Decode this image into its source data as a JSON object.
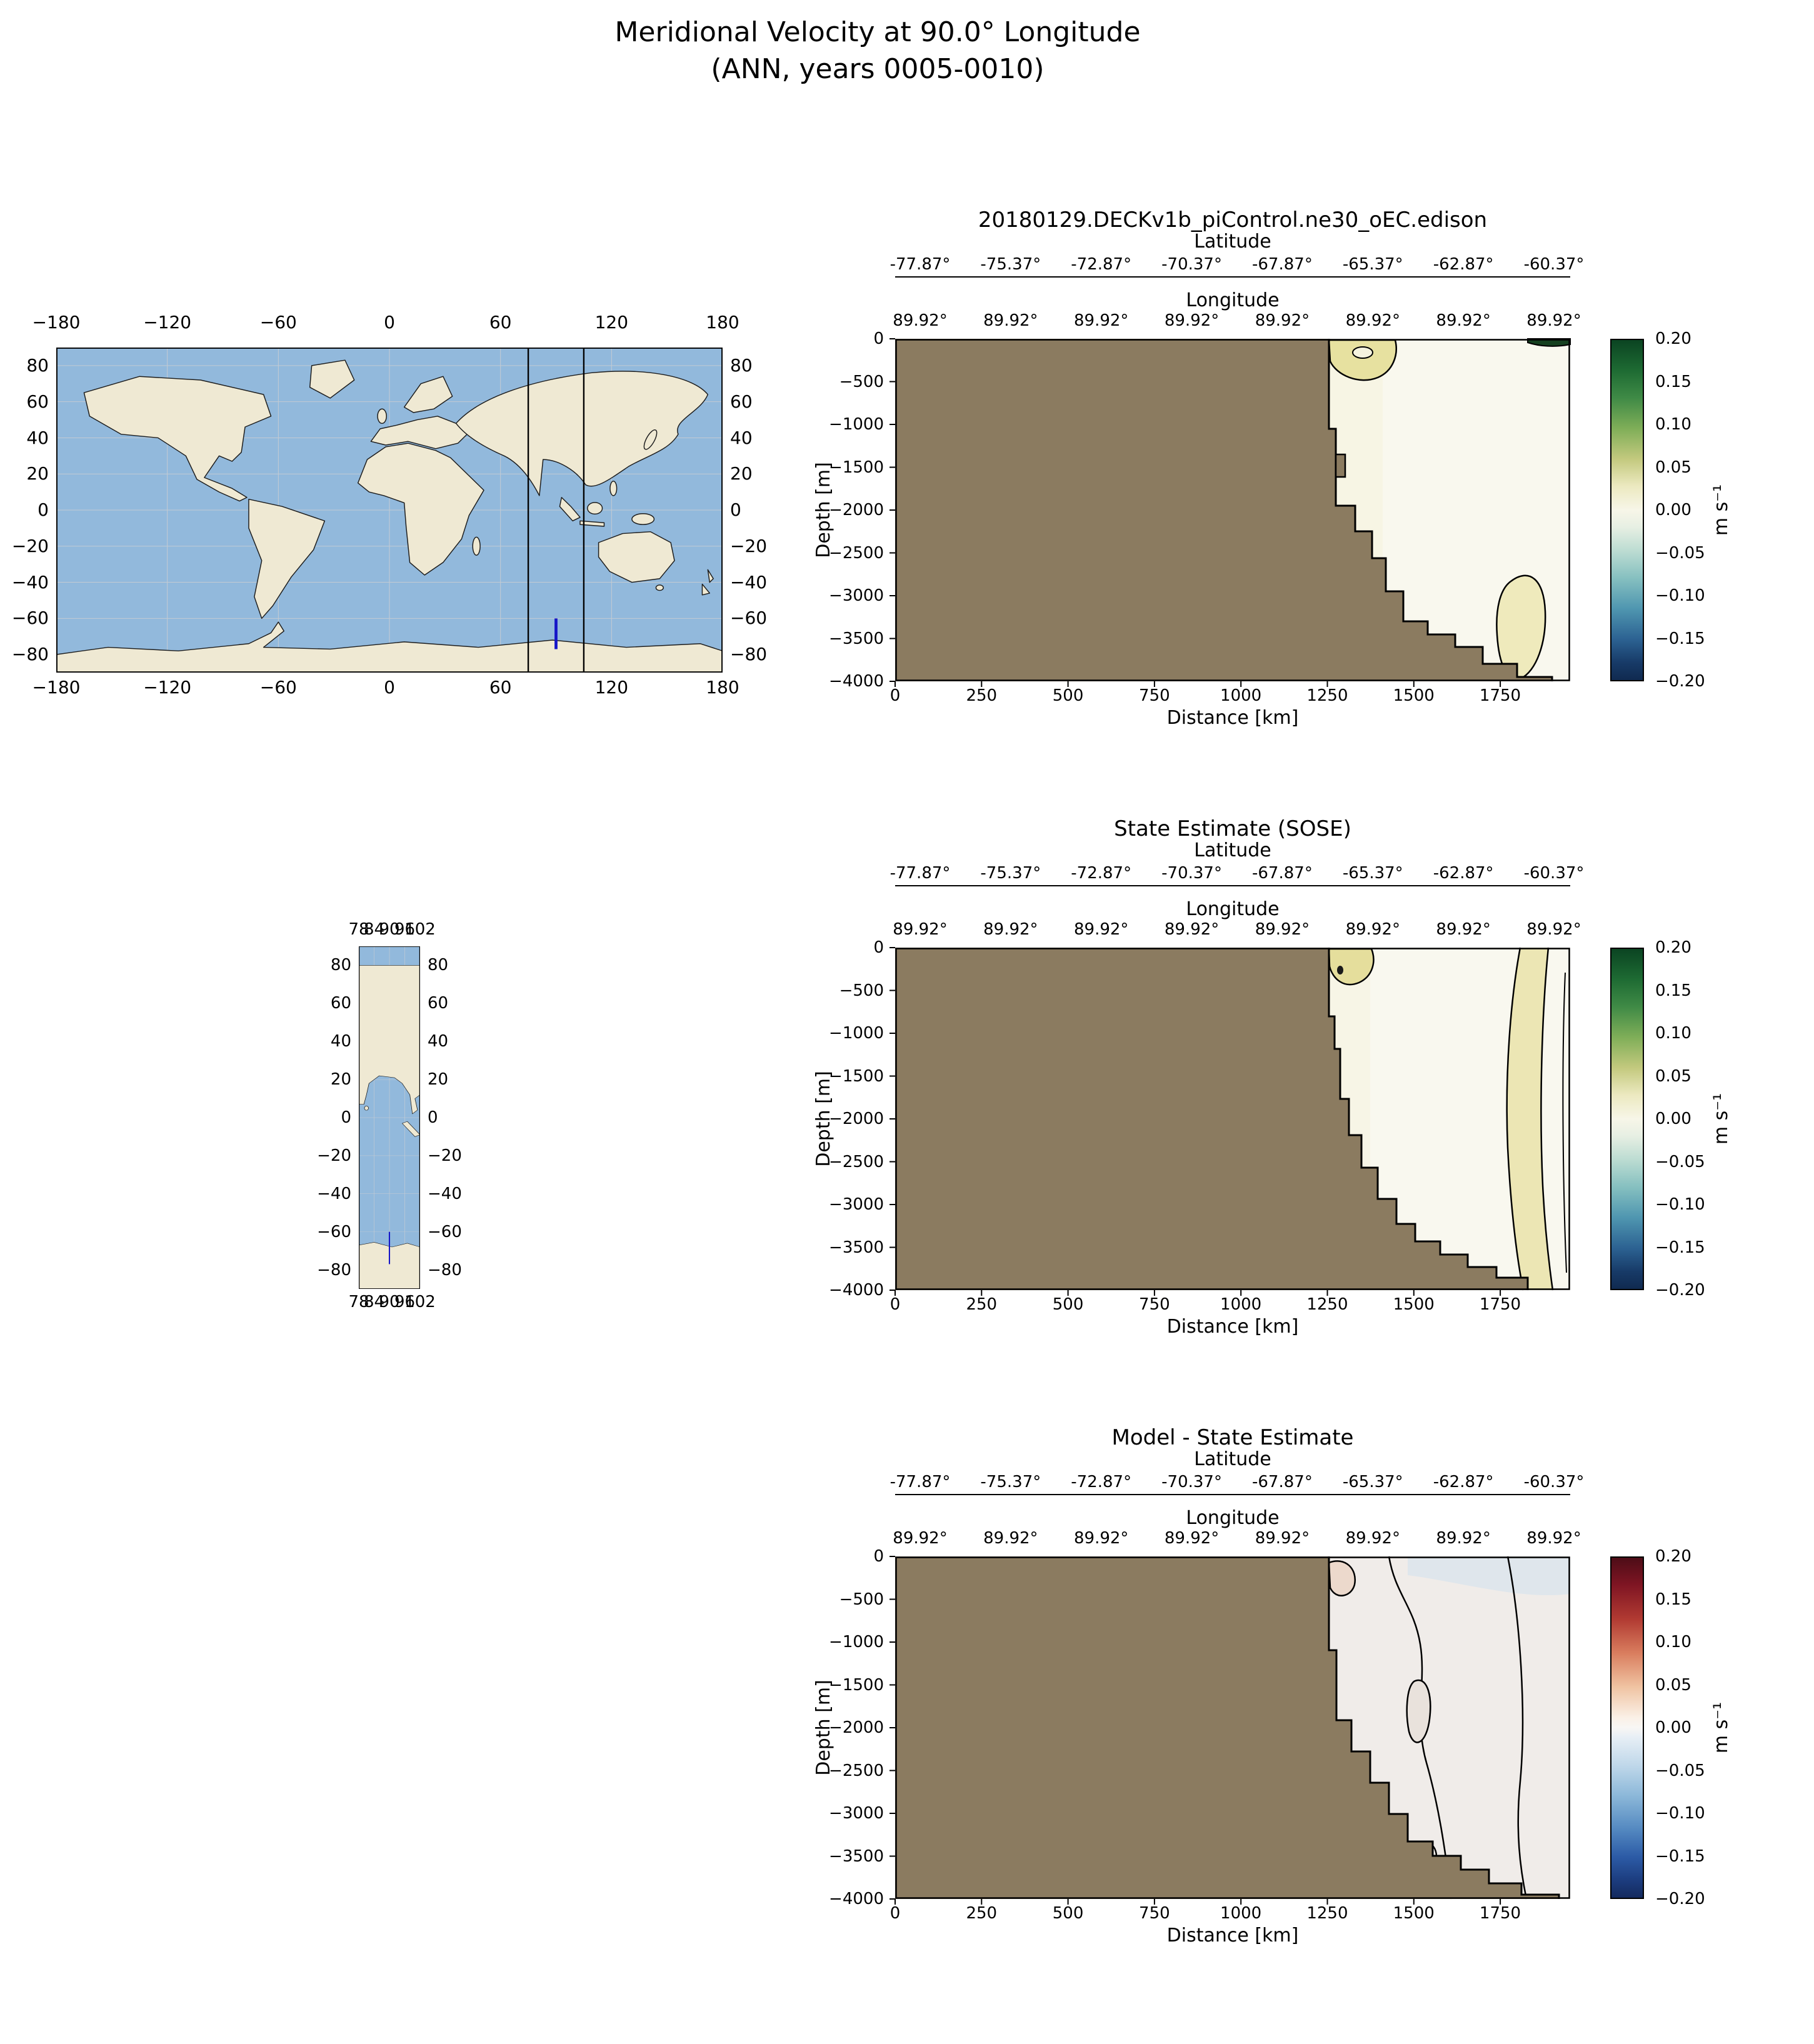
{
  "figure": {
    "title_line1": "Meridional Velocity at 90.0° Longitude",
    "title_line2": "(ANN, years 0005-0010)"
  },
  "world_map": {
    "lon_ticks": [
      "−180",
      "−120",
      "−60",
      "0",
      "60",
      "120",
      "180"
    ],
    "lat_ticks": [
      "80",
      "60",
      "40",
      "20",
      "0",
      "−20",
      "−40",
      "−60",
      "−80"
    ],
    "transect_longitude_deg": 90,
    "reference_lines_longitude_deg": [
      75,
      105
    ],
    "transect_latitude_range_deg": [
      -78,
      -60
    ],
    "colors": {
      "ocean": "#92b9dc",
      "land": "#efe9d3",
      "transect_line": "#1515c8",
      "reference_line": "#000000"
    }
  },
  "strip_map": {
    "lon_ticks": [
      "78",
      "84",
      "90",
      "96",
      "102"
    ],
    "lat_ticks": [
      "80",
      "60",
      "40",
      "20",
      "0",
      "−20",
      "−40",
      "−60",
      "−80"
    ]
  },
  "panels": [
    {
      "title": "20180129.DECKv1b_piControl.ne30_oEC.edison",
      "lat_label": "Latitude",
      "lat_ticks": [
        "-77.87°",
        "-75.37°",
        "-72.87°",
        "-70.37°",
        "-67.87°",
        "-65.37°",
        "-62.87°",
        "-60.37°"
      ],
      "lon_label": "Longitude",
      "lon_ticks": [
        "89.92°",
        "89.92°",
        "89.92°",
        "89.92°",
        "89.92°",
        "89.92°",
        "89.92°",
        "89.92°"
      ],
      "depth_label": "Depth [m]",
      "depth_ticks": [
        "0",
        "−500",
        "−1000",
        "−1500",
        "−2000",
        "−2500",
        "−3000",
        "−3500",
        "−4000"
      ],
      "dist_label": "Distance [km]",
      "dist_ticks": [
        "0",
        "250",
        "500",
        "750",
        "1000",
        "1250",
        "1500",
        "1750"
      ],
      "cb_ticks": [
        "0.20",
        "0.15",
        "0.10",
        "0.05",
        "0.00",
        "−0.05",
        "−0.10",
        "−0.15",
        "−0.20"
      ],
      "cb_label": "m s⁻¹"
    },
    {
      "title": "State Estimate (SOSE)",
      "lat_label": "Latitude",
      "lat_ticks": [
        "-77.87°",
        "-75.37°",
        "-72.87°",
        "-70.37°",
        "-67.87°",
        "-65.37°",
        "-62.87°",
        "-60.37°"
      ],
      "lon_label": "Longitude",
      "lon_ticks": [
        "89.92°",
        "89.92°",
        "89.92°",
        "89.92°",
        "89.92°",
        "89.92°",
        "89.92°",
        "89.92°"
      ],
      "depth_label": "Depth [m]",
      "depth_ticks": [
        "0",
        "−500",
        "−1000",
        "−1500",
        "−2000",
        "−2500",
        "−3000",
        "−3500",
        "−4000"
      ],
      "dist_label": "Distance [km]",
      "dist_ticks": [
        "0",
        "250",
        "500",
        "750",
        "1000",
        "1250",
        "1500",
        "1750"
      ],
      "cb_ticks": [
        "0.20",
        "0.15",
        "0.10",
        "0.05",
        "0.00",
        "−0.05",
        "−0.10",
        "−0.15",
        "−0.20"
      ],
      "cb_label": "m s⁻¹"
    },
    {
      "title": "Model - State Estimate",
      "lat_label": "Latitude",
      "lat_ticks": [
        "-77.87°",
        "-75.37°",
        "-72.87°",
        "-70.37°",
        "-67.87°",
        "-65.37°",
        "-62.87°",
        "-60.37°"
      ],
      "lon_label": "Longitude",
      "lon_ticks": [
        "89.92°",
        "89.92°",
        "89.92°",
        "89.92°",
        "89.92°",
        "89.92°",
        "89.92°",
        "89.92°"
      ],
      "depth_label": "Depth [m]",
      "depth_ticks": [
        "0",
        "−500",
        "−1000",
        "−1500",
        "−2000",
        "−2500",
        "−3000",
        "−3500",
        "−4000"
      ],
      "dist_label": "Distance [km]",
      "dist_ticks": [
        "0",
        "250",
        "500",
        "750",
        "1000",
        "1250",
        "1500",
        "1750"
      ],
      "cb_ticks": [
        "0.20",
        "0.15",
        "0.10",
        "0.05",
        "0.00",
        "−0.05",
        "−0.10",
        "−0.15",
        "−0.20"
      ],
      "cb_label": "m s⁻¹"
    }
  ],
  "chart_data": [
    {
      "type": "heatmap",
      "title": "20180129.DECKv1b_piControl.ne30_oEC.edison",
      "variable": "Meridional velocity section along 90.0°E",
      "units": "m s⁻¹",
      "xlabel": "Distance [km]",
      "ylabel": "Depth [m]",
      "xlim": [
        0,
        1950
      ],
      "ylim": [
        -4000,
        0
      ],
      "x_ticks": [
        0,
        250,
        500,
        750,
        1000,
        1250,
        1500,
        1750
      ],
      "y_ticks": [
        0,
        -500,
        -1000,
        -1500,
        -2000,
        -2500,
        -3000,
        -3500,
        -4000
      ],
      "top_axis_latitude_ticks_deg": [
        -77.87,
        -75.37,
        -72.87,
        -70.37,
        -67.87,
        -65.37,
        -62.87,
        -60.37
      ],
      "top_axis_longitude_ticks_deg": [
        89.92,
        89.92,
        89.92,
        89.92,
        89.92,
        89.92,
        89.92,
        89.92
      ],
      "colorbar": {
        "label": "m s⁻¹",
        "vmin": -0.2,
        "vmax": 0.2,
        "tick_step": 0.05,
        "palette": "dark green → yellow-green → white → light blue → dark navy"
      },
      "land_mask_color": "#8b7b60",
      "approx_seafloor_profile_km_depth_m": [
        [
          1255,
          0
        ],
        [
          1270,
          -1950
        ],
        [
          1330,
          -2250
        ],
        [
          1420,
          -2950
        ],
        [
          1540,
          -3450
        ],
        [
          1700,
          -3800
        ],
        [
          1900,
          -4000
        ]
      ],
      "visible_field_summary": "Ocean wedge right of ~1255 km; values mostly near 0 (pale); weak positive patch ~0.05 near surface at 1260-1450 km; weak positive blob near seafloor at 1750-1900 km; thin strong negative strip at surface near right edge"
    },
    {
      "type": "heatmap",
      "title": "State Estimate (SOSE)",
      "variable": "Meridional velocity section along 90.0°E",
      "units": "m s⁻¹",
      "xlabel": "Distance [km]",
      "ylabel": "Depth [m]",
      "xlim": [
        0,
        1950
      ],
      "ylim": [
        -4000,
        0
      ],
      "x_ticks": [
        0,
        250,
        500,
        750,
        1000,
        1250,
        1500,
        1750
      ],
      "y_ticks": [
        0,
        -500,
        -1000,
        -1500,
        -2000,
        -2500,
        -3000,
        -3500,
        -4000
      ],
      "top_axis_latitude_ticks_deg": [
        -77.87,
        -75.37,
        -72.87,
        -70.37,
        -67.87,
        -65.37,
        -62.87,
        -60.37
      ],
      "top_axis_longitude_ticks_deg": [
        89.92,
        89.92,
        89.92,
        89.92,
        89.92,
        89.92,
        89.92,
        89.92
      ],
      "colorbar": {
        "label": "m s⁻¹",
        "vmin": -0.2,
        "vmax": 0.2,
        "tick_step": 0.05,
        "palette": "dark green → yellow-green → white → light blue → dark navy"
      },
      "land_mask_color": "#8b7b60",
      "approx_seafloor_profile_km_depth_m": [
        [
          1254,
          0
        ],
        [
          1290,
          -1770
        ],
        [
          1395,
          -2930
        ],
        [
          1576,
          -3580
        ],
        [
          1830,
          -4000
        ]
      ],
      "visible_field_summary": "Weak positive patch near surface at shelf break; full-depth quasi-vertical contour band of weak positive values near 1800-1900 km; elsewhere near zero"
    },
    {
      "type": "heatmap",
      "title": "Model - State Estimate",
      "variable": "Meridional velocity difference along 90.0°E",
      "units": "m s⁻¹",
      "xlabel": "Distance [km]",
      "ylabel": "Depth [m]",
      "xlim": [
        0,
        1950
      ],
      "ylim": [
        -4000,
        0
      ],
      "x_ticks": [
        0,
        250,
        500,
        750,
        1000,
        1250,
        1500,
        1750
      ],
      "y_ticks": [
        0,
        -500,
        -1000,
        -1500,
        -2000,
        -2500,
        -3000,
        -3500,
        -4000
      ],
      "top_axis_latitude_ticks_deg": [
        -77.87,
        -75.37,
        -72.87,
        -70.37,
        -67.87,
        -65.37,
        -62.87,
        -60.37
      ],
      "top_axis_longitude_ticks_deg": [
        89.92,
        89.92,
        89.92,
        89.92,
        89.92,
        89.92,
        89.92,
        89.92
      ],
      "colorbar": {
        "label": "m s⁻¹",
        "vmin": -0.2,
        "vmax": 0.2,
        "tick_step": 0.05,
        "palette": "dark red → white → dark blue (diverging)"
      },
      "land_mask_color": "#8b7b60",
      "approx_seafloor_profile_km_depth_m": [
        [
          1255,
          0
        ],
        [
          1276,
          -1900
        ],
        [
          1420,
          -3000
        ],
        [
          1640,
          -3600
        ],
        [
          1920,
          -3950
        ]
      ],
      "visible_field_summary": "Differences near zero (pale); wiggly zero contours through the ocean wedge; slight negative (blue) tint near surface at far right; slight positive (pink) patches near shelf"
    }
  ]
}
